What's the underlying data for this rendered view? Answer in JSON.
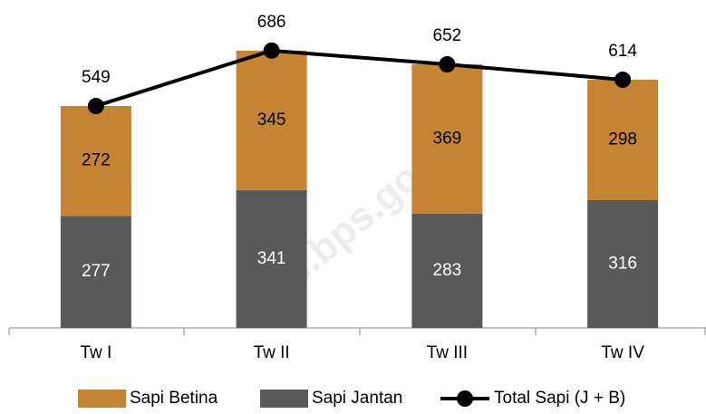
{
  "chart_data": {
    "type": "bar",
    "stacked": true,
    "categories": [
      "Tw I",
      "Tw II",
      "Tw III",
      "Tw IV"
    ],
    "series": [
      {
        "name": "Sapi Betina",
        "color": "#c48433",
        "values": [
          272,
          345,
          369,
          298
        ]
      },
      {
        "name": "Sapi Jantan",
        "color": "#595959",
        "values": [
          277,
          341,
          283,
          316
        ]
      },
      {
        "name": "Total Sapi (J + B)",
        "type": "line",
        "color": "#000000",
        "values": [
          549,
          686,
          652,
          614
        ]
      }
    ],
    "ylim": [
      0,
      800
    ],
    "watermark": "kab.bps.go.id"
  }
}
